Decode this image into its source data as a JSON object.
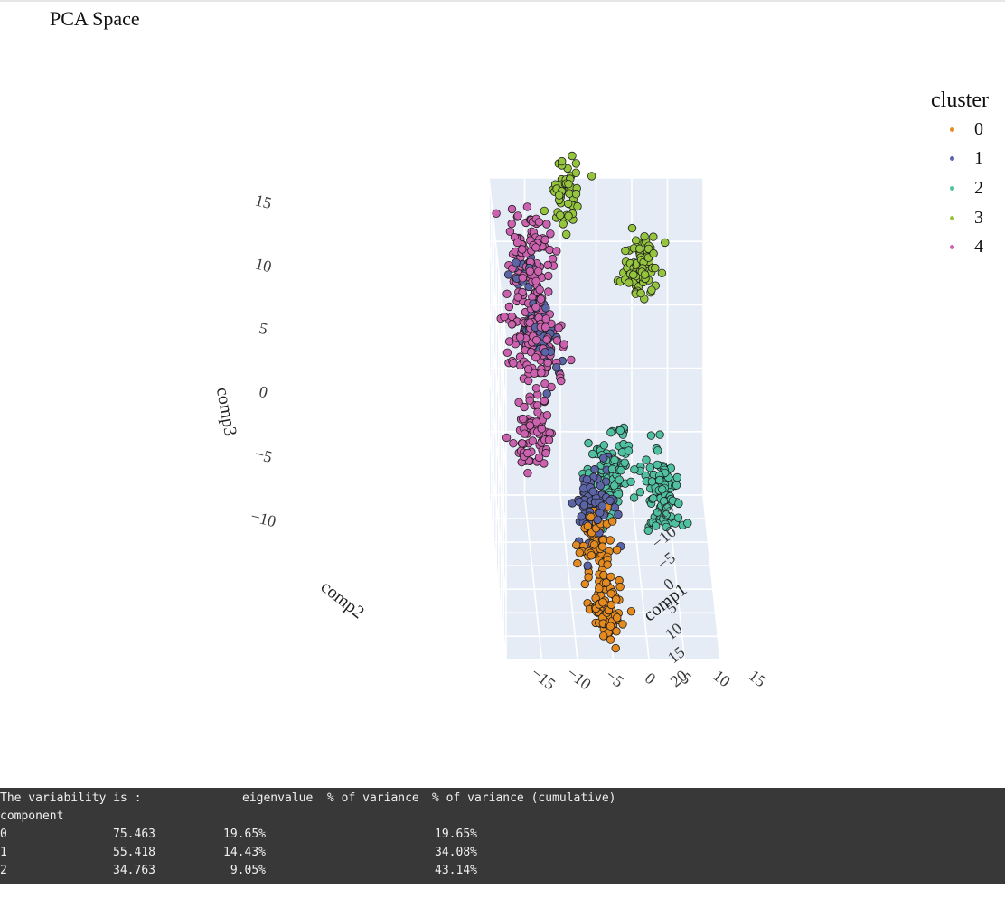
{
  "title": "PCA Space",
  "chart_data": {
    "type": "scatter",
    "is3d": true,
    "axes": {
      "x": {
        "label": "comp1",
        "range": [
          -15,
          15
        ],
        "ticks": [
          -15,
          -10,
          -5,
          0,
          5,
          10,
          15
        ]
      },
      "y": {
        "label": "comp2",
        "range": [
          -15,
          20
        ],
        "ticks": [
          -15,
          -10,
          -5,
          0,
          5,
          10,
          15,
          20
        ]
      },
      "z": {
        "label": "comp3",
        "range": [
          -10,
          15
        ],
        "ticks": [
          -10,
          -5,
          0,
          5,
          10,
          15
        ]
      }
    },
    "legend": {
      "title": "cluster",
      "placement": "top-right"
    },
    "series": [
      {
        "name": "0",
        "color": "#e48a1e",
        "groups": [
          {
            "center": [
              0,
              4,
              -12
            ],
            "spread": [
              1.2,
              1.2,
              1.2
            ],
            "n": 90
          },
          {
            "center": [
              -1,
              0.5,
              -8
            ],
            "spread": [
              1.2,
              1.4,
              1.3
            ],
            "n": 65
          }
        ]
      },
      {
        "name": "1",
        "color": "#5c64a8",
        "groups": [
          {
            "center": [
              -1.5,
              -1,
              -5.5
            ],
            "spread": [
              1.4,
              1.4,
              1.4
            ],
            "n": 75
          },
          {
            "center": [
              -9,
              -2,
              7
            ],
            "spread": [
              1.4,
              1.5,
              1.8
            ],
            "n": 55
          },
          {
            "center": [
              -10,
              -7,
              10
            ],
            "spread": [
              1.2,
              1.3,
              1.2
            ],
            "n": 22
          }
        ]
      },
      {
        "name": "2",
        "color": "#4fc1a1",
        "groups": [
          {
            "center": [
              1.5,
              -5,
              -4.5
            ],
            "spread": [
              1.4,
              1.4,
              1.6
            ],
            "n": 110
          },
          {
            "center": [
              9,
              -10,
              -8
            ],
            "spread": [
              1.3,
              1.3,
              1.7
            ],
            "n": 95
          }
        ]
      },
      {
        "name": "3",
        "color": "#95c43d",
        "groups": [
          {
            "center": [
              6,
              -14,
              8
            ],
            "spread": [
              1.2,
              1.2,
              1.5
            ],
            "n": 90
          },
          {
            "center": [
              -4,
              -17,
              13
            ],
            "spread": [
              1.1,
              1.1,
              1.4
            ],
            "n": 50
          }
        ]
      },
      {
        "name": "4",
        "color": "#cc61b0",
        "groups": [
          {
            "center": [
              -10,
              1,
              1
            ],
            "spread": [
              1.4,
              1.4,
              1.4
            ],
            "n": 70
          },
          {
            "center": [
              -9.5,
              -2,
              7.5
            ],
            "spread": [
              2.0,
              2.0,
              2.0
            ],
            "n": 150
          },
          {
            "center": [
              -10,
              -7,
              12
            ],
            "spread": [
              1.6,
              1.5,
              1.8
            ],
            "n": 85
          }
        ]
      }
    ]
  },
  "console": {
    "heading": "The variability is :",
    "col_headers": [
      "eigenvalue",
      "% of variance",
      "% of variance (cumulative)"
    ],
    "index_name": "component",
    "rows": [
      {
        "component": "0",
        "eigenvalue": "75.463",
        "variance": "19.65%",
        "cumulative": "19.65%"
      },
      {
        "component": "1",
        "eigenvalue": "55.418",
        "variance": "14.43%",
        "cumulative": "34.08%"
      },
      {
        "component": "2",
        "eigenvalue": "34.763",
        "variance": "9.05%",
        "cumulative": "43.14%"
      }
    ]
  }
}
